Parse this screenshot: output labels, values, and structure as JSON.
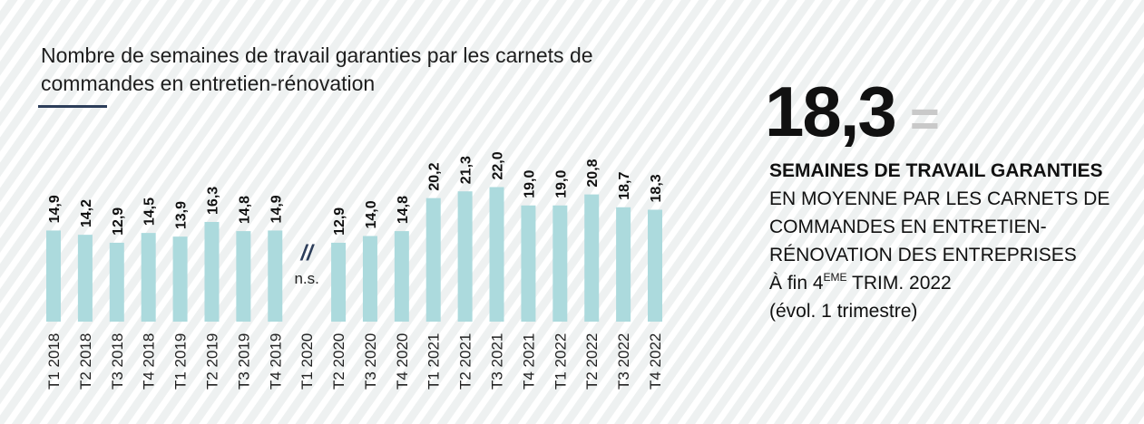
{
  "chart_data": {
    "type": "bar",
    "title": "Nombre de semaines de travail garanties par les carnets de commandes en entretien-rénovation",
    "categories": [
      "T1 2018",
      "T2 2018",
      "T3 2018",
      "T4 2018",
      "T1 2019",
      "T2 2019",
      "T3 2019",
      "T4 2019",
      "T1 2020",
      "T2 2020",
      "T3 2020",
      "T4 2020",
      "T1 2021",
      "T2 2021",
      "T3 2021",
      "T4 2021",
      "T1 2022",
      "T2 2022",
      "T3 2022",
      "T4 2022"
    ],
    "values": [
      14.9,
      14.2,
      12.9,
      14.5,
      13.9,
      16.3,
      14.8,
      14.9,
      null,
      12.9,
      14.0,
      14.8,
      20.2,
      21.3,
      22.0,
      19.0,
      19.0,
      20.8,
      18.7,
      18.3
    ],
    "value_labels": [
      "14,9",
      "14,2",
      "12,9",
      "14,5",
      "13,9",
      "16,3",
      "14,8",
      "14,9",
      null,
      "12,9",
      "14,0",
      "14,8",
      "20,2",
      "21,3",
      "22,0",
      "19,0",
      "19,0",
      "20,8",
      "18,7",
      "18,3"
    ],
    "color": "#acdadd",
    "annotation": {
      "category": "T1 2020",
      "symbol": "//",
      "text": "n.s."
    }
  },
  "kpi": {
    "value": "18,3",
    "trend": "=",
    "bold_text": "SEMAINES DE TRAVAIL GARANTIES",
    "text": "EN MOYENNE PAR LES CARNETS DE COMMANDES EN ENTRETIEN-RÉNOVATION DES ENTREPRISES",
    "date_prefix": "À fin 4",
    "date_sup": "EME",
    "date_suffix": "TRIM. 2022",
    "note": "(évol. 1 trimestre)"
  }
}
